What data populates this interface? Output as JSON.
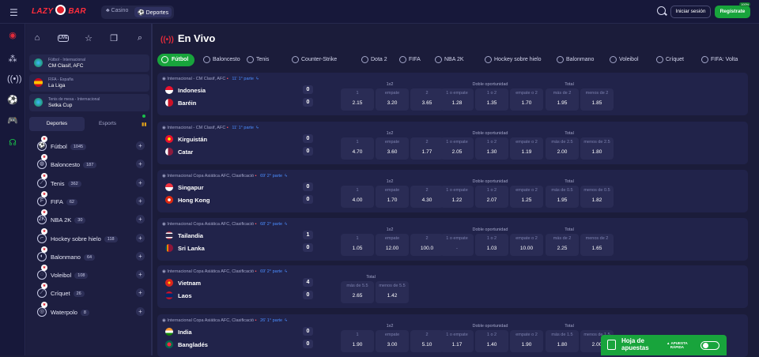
{
  "topbar": {
    "brand": "LAZY",
    "brand2": "BAR",
    "seg_casino": "Casino",
    "seg_sports": "Deportes",
    "login": "Iniciar sesión",
    "register": "Regístrate",
    "register_badge": "100%"
  },
  "sidebar": {
    "favorites": [
      {
        "league": "Fútbol - Internacional",
        "name": "CM Clasif, AFC"
      },
      {
        "league": "FIFA - España",
        "name": "La Liga"
      },
      {
        "league": "Tenis de mesa - Internacional",
        "name": "Setka Cup"
      }
    ],
    "tab_sports": "Deportes",
    "tab_esports": "Esports",
    "sports": [
      {
        "name": "Fútbol",
        "count": "1045",
        "icon": "⚽"
      },
      {
        "name": "Baloncesto",
        "count": "187",
        "icon": "◍"
      },
      {
        "name": "Tenis",
        "count": "362",
        "icon": "⟋"
      },
      {
        "name": "FIFA",
        "count": "62",
        "icon": "F"
      },
      {
        "name": "NBA 2K",
        "count": "30",
        "icon": "2K"
      },
      {
        "name": "Hockey sobre hielo",
        "count": "118",
        "icon": "⌐"
      },
      {
        "name": "Balonmano",
        "count": "64",
        "icon": "◐"
      },
      {
        "name": "Voleibol",
        "count": "108",
        "icon": "◌"
      },
      {
        "name": "Críquet",
        "count": "26",
        "icon": "⟋"
      },
      {
        "name": "Waterpolo",
        "count": "8",
        "icon": "◎"
      }
    ]
  },
  "main": {
    "title": "En Vivo",
    "categories": [
      "Fútbol",
      "Baloncesto",
      "Tenis",
      "Counter-Strike",
      "Dota 2",
      "FIFA",
      "NBA 2K",
      "Hockey sobre hielo",
      "Balonmano",
      "Voleibol",
      "Críquet",
      "FIFA: Volta"
    ],
    "matches": [
      {
        "league": "Internacional - CM Clasif, AFC",
        "time": "11' 1° parte",
        "home": "Indonesia",
        "away": "Baréin",
        "hs": "0",
        "as": "0",
        "odds": [
          "2.15",
          "3.20",
          "3.65",
          "1.28",
          "1.35",
          "1.70",
          "1.95",
          "1.85"
        ],
        "total_labels": [
          "más de 2",
          "menos de 2"
        ]
      },
      {
        "league": "Internacional - CM Clasif, AFC",
        "time": "11' 1° parte",
        "home": "Kirguistán",
        "away": "Catar",
        "hs": "0",
        "as": "0",
        "odds": [
          "4.70",
          "3.60",
          "1.77",
          "2.05",
          "1.30",
          "1.19",
          "2.00",
          "1.80"
        ],
        "total_labels": [
          "más de 2.5",
          "menos de 2.5"
        ]
      },
      {
        "league": "Internacional Copa Asiática AFC, Clasificació",
        "time": "69' 2° parte",
        "home": "Singapur",
        "away": "Hong Kong",
        "hs": "0",
        "as": "0",
        "odds": [
          "4.00",
          "1.70",
          "4.30",
          "1.22",
          "2.07",
          "1.25",
          "1.95",
          "1.82"
        ],
        "total_labels": [
          "más de 0.5",
          "menos de 0.5"
        ]
      },
      {
        "league": "Internacional Copa Asiática AFC, Clasificació",
        "time": "68' 2° parte",
        "home": "Tailandia",
        "away": "Sri Lanka",
        "hs": "1",
        "as": "0",
        "odds": [
          "1.05",
          "12.00",
          "100.0",
          "-",
          "1.03",
          "10.00",
          "2.25",
          "1.65"
        ],
        "total_labels": [
          "más de 2",
          "menos de 2"
        ]
      },
      {
        "league": "Internacional Copa Asiática AFC, Clasificació",
        "time": "69' 2° parte",
        "home": "Vietnam",
        "away": "Laos",
        "hs": "4",
        "as": "0",
        "odds": [
          "2.65",
          "1.42"
        ],
        "total_labels": [
          "más de 5.5",
          "menos de 5.5"
        ]
      },
      {
        "league": "Internacional Copa Asiática AFC, Clasificació",
        "time": "26' 1° parte",
        "home": "India",
        "away": "Bangladés",
        "hs": "0",
        "as": "0",
        "odds": [
          "1.90",
          "3.00",
          "5.10",
          "1.17",
          "1.40",
          "1.90",
          "1.80",
          "2.00"
        ],
        "total_labels": [
          "más de 1.5",
          "menos de 1.5"
        ]
      }
    ],
    "markets": {
      "x12": "1x2",
      "double": "Doble oportunidad",
      "total": "Total"
    },
    "x12_labels": [
      "1",
      "empate",
      "2"
    ],
    "double_labels": [
      "1 o empate",
      "1 o 2",
      "empate o 2"
    ]
  },
  "betslip": {
    "label1": "Hoja de",
    "label2": "apuestas",
    "quick1": "APUESTA",
    "quick2": "RÁPIDA"
  }
}
